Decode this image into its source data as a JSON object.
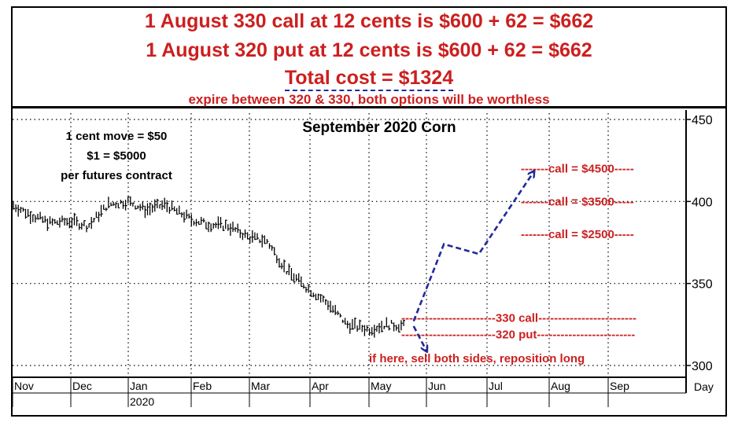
{
  "header": {
    "line1": "1 August 330 call at 12 cents is $600 + 62 = $662",
    "line2": "1 August 320 put at 12 cents is $600 + 62 = $662",
    "line3": "Total cost = $1324",
    "line4": "expire between 320 & 330, both options will be worthless"
  },
  "notes": {
    "left1": "1 cent move = $50",
    "left2": "$1 = $5000",
    "left3": "per futures contract",
    "bottom": "if here, sell both sides, reposition long"
  },
  "colors": {
    "red": "#cc1f1f",
    "blue": "#1f2a9a",
    "bars": "#000000"
  },
  "chart_data": {
    "type": "bar",
    "subtype": "ohlc",
    "title": "September 2020 Corn",
    "ylim": [
      300,
      450
    ],
    "y_ticks": [
      300,
      350,
      400,
      450
    ],
    "x_ticks": [
      "Nov",
      "Dec",
      "Jan",
      "Feb",
      "Mar",
      "Apr",
      "May",
      "Jun",
      "Jul",
      "Aug",
      "Sep"
    ],
    "x_sublabel": "2020",
    "x_unit": "Day",
    "grid": true,
    "prices": [
      {
        "month": "Nov",
        "day": 1,
        "value": 398
      },
      {
        "month": "Nov",
        "day": 10,
        "value": 392
      },
      {
        "month": "Nov",
        "day": 20,
        "value": 387
      },
      {
        "month": "Dec",
        "day": 1,
        "value": 388
      },
      {
        "month": "Dec",
        "day": 10,
        "value": 385
      },
      {
        "month": "Dec",
        "day": 20,
        "value": 398
      },
      {
        "month": "Jan",
        "day": 1,
        "value": 400
      },
      {
        "month": "Jan",
        "day": 10,
        "value": 395
      },
      {
        "month": "Jan",
        "day": 20,
        "value": 398
      },
      {
        "month": "Feb",
        "day": 1,
        "value": 389
      },
      {
        "month": "Feb",
        "day": 10,
        "value": 386
      },
      {
        "month": "Feb",
        "day": 20,
        "value": 385
      },
      {
        "month": "Mar",
        "day": 1,
        "value": 378
      },
      {
        "month": "Mar",
        "day": 10,
        "value": 376
      },
      {
        "month": "Mar",
        "day": 20,
        "value": 358
      },
      {
        "month": "Apr",
        "day": 1,
        "value": 346
      },
      {
        "month": "Apr",
        "day": 10,
        "value": 338
      },
      {
        "month": "Apr",
        "day": 20,
        "value": 325
      },
      {
        "month": "May",
        "day": 1,
        "value": 322
      },
      {
        "month": "May",
        "day": 10,
        "value": 325
      },
      {
        "month": "May",
        "day": 20,
        "value": 324
      }
    ],
    "projection_up": [
      {
        "month": "May",
        "day": 24,
        "value": 327
      },
      {
        "month": "Jun",
        "day": 10,
        "value": 374
      },
      {
        "month": "Jun",
        "day": 28,
        "value": 368
      },
      {
        "month": "Jul",
        "day": 25,
        "value": 418
      }
    ],
    "projection_down": [
      {
        "month": "May",
        "day": 24,
        "value": 324
      },
      {
        "month": "Jun",
        "day": 1,
        "value": 309
      }
    ],
    "levels": [
      {
        "label": "-------call = $4500-----",
        "value": 420
      },
      {
        "label": "-------call = $3500-----",
        "value": 400
      },
      {
        "label": "-------call = $2500-----",
        "value": 380
      },
      {
        "label": "------------------------330 call-------------------------",
        "value": 329
      },
      {
        "label": "------------------------320 put-------------------------",
        "value": 319
      }
    ]
  }
}
